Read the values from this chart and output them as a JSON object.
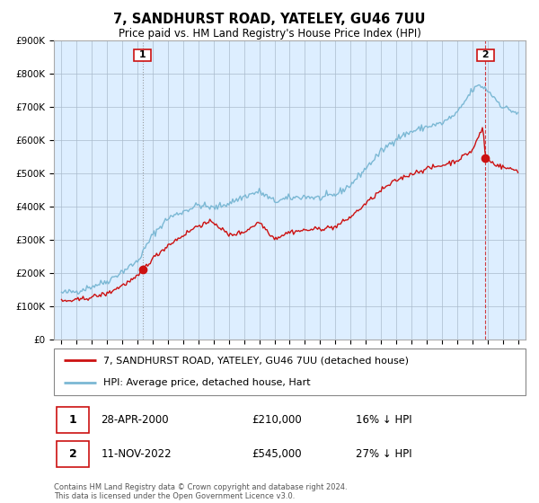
{
  "title": "7, SANDHURST ROAD, YATELEY, GU46 7UU",
  "subtitle": "Price paid vs. HM Land Registry's House Price Index (HPI)",
  "hpi_label": "HPI: Average price, detached house, Hart",
  "property_label": "7, SANDHURST ROAD, YATELEY, GU46 7UU (detached house)",
  "transaction1_date": "28-APR-2000",
  "transaction1_price": "£210,000",
  "transaction1_hpi": "16% ↓ HPI",
  "transaction2_date": "11-NOV-2022",
  "transaction2_price": "£545,000",
  "transaction2_hpi": "27% ↓ HPI",
  "footer": "Contains HM Land Registry data © Crown copyright and database right 2024.\nThis data is licensed under the Open Government Licence v3.0.",
  "ylim": [
    0,
    900000
  ],
  "yticks": [
    0,
    100000,
    200000,
    300000,
    400000,
    500000,
    600000,
    700000,
    800000,
    900000
  ],
  "hpi_color": "#7bb8d4",
  "property_color": "#cc1111",
  "marker_color": "#cc1111",
  "vline1_color": "#888888",
  "vline2_color": "#cc1111",
  "bg_color": "#ddeeff",
  "grid_color": "#aabbcc",
  "transaction1_x": 2000.33,
  "transaction1_y": 210000,
  "transaction2_x": 2022.87,
  "transaction2_y": 545000,
  "label_border_color": "#cc1111",
  "xlim_left": 1994.5,
  "xlim_right": 2025.5
}
